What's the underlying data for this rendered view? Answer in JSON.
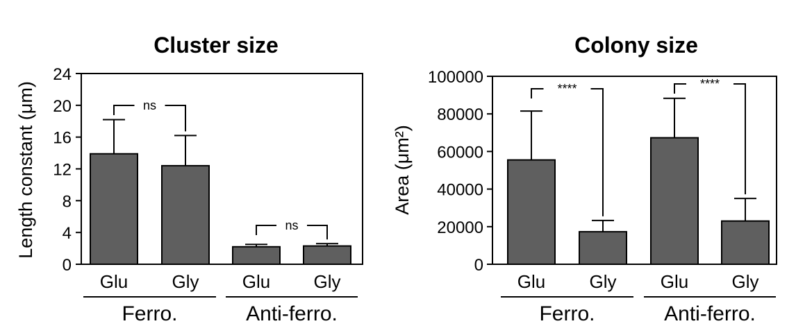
{
  "chart_data": [
    {
      "type": "bar",
      "title": "Cluster size",
      "ylabel": "Length constant (μm)",
      "ylim": [
        0,
        24
      ],
      "yticks": [
        0,
        4,
        8,
        12,
        16,
        20,
        24
      ],
      "categories": [
        "Glu",
        "Gly",
        "Glu",
        "Gly"
      ],
      "groups": [
        {
          "label": "Ferro.",
          "categories": [
            0,
            1
          ]
        },
        {
          "label": "Anti-ferro.",
          "categories": [
            2,
            3
          ]
        }
      ],
      "values": [
        13.9,
        12.4,
        2.2,
        2.3
      ],
      "error": [
        4.3,
        3.8,
        0.3,
        0.3
      ],
      "bar_color": "#5f5f5f",
      "significance": [
        {
          "from": 0,
          "to": 1,
          "label": "ns"
        },
        {
          "from": 2,
          "to": 3,
          "label": "ns"
        }
      ]
    },
    {
      "type": "bar",
      "title": "Colony size",
      "ylabel": "Area (μm²)",
      "ylim": [
        0,
        100000
      ],
      "yticks": [
        0,
        20000,
        40000,
        60000,
        80000,
        100000
      ],
      "categories": [
        "Glu",
        "Gly",
        "Glu",
        "Gly"
      ],
      "groups": [
        {
          "label": "Ferro.",
          "categories": [
            0,
            1
          ]
        },
        {
          "label": "Anti-ferro.",
          "categories": [
            2,
            3
          ]
        }
      ],
      "values": [
        55500,
        17300,
        67300,
        23000
      ],
      "error": [
        26000,
        6000,
        21000,
        12000
      ],
      "bar_color": "#5f5f5f",
      "significance": [
        {
          "from": 0,
          "to": 1,
          "label": "****"
        },
        {
          "from": 2,
          "to": 3,
          "label": "****"
        }
      ]
    }
  ]
}
